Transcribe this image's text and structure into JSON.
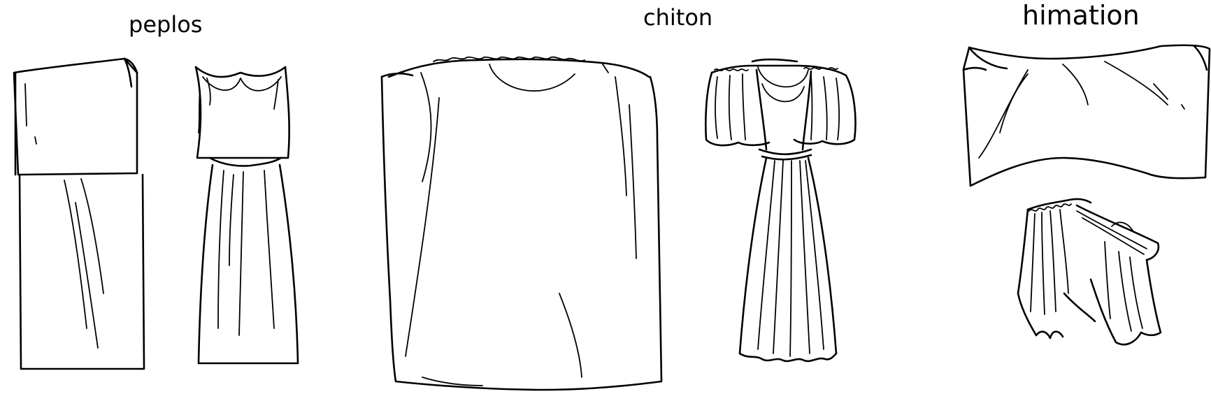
{
  "labels": {
    "peplos": "peplos",
    "chiton": "chiton",
    "himation": "himation"
  },
  "style": {
    "line_color": "#000000",
    "background": "#ffffff"
  }
}
